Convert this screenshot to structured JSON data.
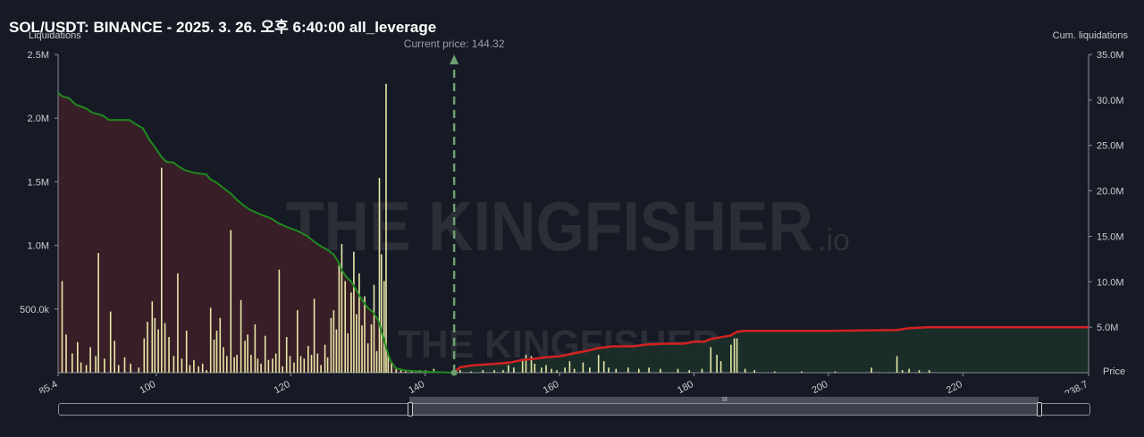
{
  "header": {
    "title": "SOL/USDT: BINANCE - 2025. 3. 26. 오후 6:40:00 all_leverage"
  },
  "axes": {
    "left_label": "Liquidations",
    "right_label": "Cum. liquidations",
    "price_label": "Price",
    "current_price_label": "Current price: 144.32"
  },
  "watermark": {
    "text": "THE KINGFISHER",
    "suffix": ".io"
  },
  "colors": {
    "background": "#161a25",
    "long_fill": "#3a1f27",
    "short_fill": "#1b2e28",
    "long_cum_line": "#1f8a1f",
    "short_cum_line": "#d42222",
    "bars": "#e8e8a8",
    "current_price_line": "#6f9f6f"
  },
  "scrollbar": {
    "grip": "III"
  },
  "chart_data": {
    "type": "bar",
    "xlabel": "Price",
    "ylabel": "Liquidations",
    "y2label": "Cum. liquidations",
    "xlim": [
      85.4,
      238.7
    ],
    "ylim": [
      0,
      2500000
    ],
    "y2lim": [
      0,
      35000000
    ],
    "x_ticks": [
      "85.4",
      "100",
      "120",
      "140",
      "160",
      "180",
      "200",
      "220",
      "238.7"
    ],
    "y_ticks": [
      "500.0k",
      "1.0M",
      "1.5M",
      "2.0M",
      "2.5M"
    ],
    "y2_ticks": [
      "5.0M",
      "10.0M",
      "15.0M",
      "20.0M",
      "25.0M",
      "30.0M",
      "35.0M"
    ],
    "current_price": 144.32,
    "bars": [
      {
        "x": 86.0,
        "y": 720000
      },
      {
        "x": 86.6,
        "y": 300000
      },
      {
        "x": 87.5,
        "y": 150000
      },
      {
        "x": 88.3,
        "y": 240000
      },
      {
        "x": 88.8,
        "y": 80000
      },
      {
        "x": 89.6,
        "y": 60000
      },
      {
        "x": 90.2,
        "y": 200000
      },
      {
        "x": 91.0,
        "y": 130000
      },
      {
        "x": 91.4,
        "y": 940000
      },
      {
        "x": 92.3,
        "y": 110000
      },
      {
        "x": 93.2,
        "y": 480000
      },
      {
        "x": 93.8,
        "y": 250000
      },
      {
        "x": 94.4,
        "y": 60000
      },
      {
        "x": 95.3,
        "y": 120000
      },
      {
        "x": 96.2,
        "y": 70000
      },
      {
        "x": 97.4,
        "y": 40000
      },
      {
        "x": 98.2,
        "y": 270000
      },
      {
        "x": 98.7,
        "y": 400000
      },
      {
        "x": 99.4,
        "y": 560000
      },
      {
        "x": 99.8,
        "y": 430000
      },
      {
        "x": 100.3,
        "y": 340000
      },
      {
        "x": 100.8,
        "y": 1610000
      },
      {
        "x": 101.3,
        "y": 390000
      },
      {
        "x": 101.9,
        "y": 280000
      },
      {
        "x": 102.6,
        "y": 130000
      },
      {
        "x": 103.2,
        "y": 780000
      },
      {
        "x": 103.8,
        "y": 110000
      },
      {
        "x": 104.5,
        "y": 330000
      },
      {
        "x": 105.0,
        "y": 60000
      },
      {
        "x": 105.6,
        "y": 100000
      },
      {
        "x": 106.3,
        "y": 50000
      },
      {
        "x": 106.9,
        "y": 70000
      },
      {
        "x": 107.5,
        "y": 20000
      },
      {
        "x": 108.1,
        "y": 510000
      },
      {
        "x": 108.6,
        "y": 260000
      },
      {
        "x": 109.0,
        "y": 330000
      },
      {
        "x": 109.5,
        "y": 430000
      },
      {
        "x": 110.0,
        "y": 200000
      },
      {
        "x": 110.5,
        "y": 130000
      },
      {
        "x": 111.1,
        "y": 1120000
      },
      {
        "x": 111.6,
        "y": 120000
      },
      {
        "x": 112.0,
        "y": 140000
      },
      {
        "x": 112.6,
        "y": 570000
      },
      {
        "x": 113.2,
        "y": 250000
      },
      {
        "x": 113.6,
        "y": 300000
      },
      {
        "x": 114.1,
        "y": 140000
      },
      {
        "x": 114.7,
        "y": 380000
      },
      {
        "x": 115.1,
        "y": 110000
      },
      {
        "x": 115.6,
        "y": 70000
      },
      {
        "x": 116.2,
        "y": 290000
      },
      {
        "x": 116.7,
        "y": 100000
      },
      {
        "x": 117.3,
        "y": 110000
      },
      {
        "x": 117.8,
        "y": 150000
      },
      {
        "x": 118.3,
        "y": 810000
      },
      {
        "x": 118.8,
        "y": 50000
      },
      {
        "x": 119.4,
        "y": 280000
      },
      {
        "x": 119.9,
        "y": 130000
      },
      {
        "x": 120.5,
        "y": 80000
      },
      {
        "x": 121.0,
        "y": 490000
      },
      {
        "x": 121.5,
        "y": 130000
      },
      {
        "x": 122.0,
        "y": 110000
      },
      {
        "x": 122.6,
        "y": 210000
      },
      {
        "x": 123.1,
        "y": 140000
      },
      {
        "x": 123.5,
        "y": 580000
      },
      {
        "x": 124.0,
        "y": 150000
      },
      {
        "x": 124.5,
        "y": 60000
      },
      {
        "x": 125.1,
        "y": 220000
      },
      {
        "x": 125.5,
        "y": 120000
      },
      {
        "x": 126.0,
        "y": 430000
      },
      {
        "x": 126.4,
        "y": 490000
      },
      {
        "x": 126.8,
        "y": 340000
      },
      {
        "x": 127.2,
        "y": 860000
      },
      {
        "x": 127.6,
        "y": 1010000
      },
      {
        "x": 128.1,
        "y": 720000
      },
      {
        "x": 128.5,
        "y": 310000
      },
      {
        "x": 129.0,
        "y": 630000
      },
      {
        "x": 129.4,
        "y": 950000
      },
      {
        "x": 129.8,
        "y": 460000
      },
      {
        "x": 130.2,
        "y": 780000
      },
      {
        "x": 130.6,
        "y": 370000
      },
      {
        "x": 131.0,
        "y": 600000
      },
      {
        "x": 131.5,
        "y": 230000
      },
      {
        "x": 132.0,
        "y": 380000
      },
      {
        "x": 132.4,
        "y": 690000
      },
      {
        "x": 132.8,
        "y": 170000
      },
      {
        "x": 133.2,
        "y": 1530000
      },
      {
        "x": 133.5,
        "y": 930000
      },
      {
        "x": 133.9,
        "y": 720000
      },
      {
        "x": 134.2,
        "y": 2270000
      },
      {
        "x": 134.5,
        "y": 140000
      },
      {
        "x": 135.0,
        "y": 80000
      },
      {
        "x": 135.7,
        "y": 30000
      },
      {
        "x": 136.4,
        "y": 20000
      },
      {
        "x": 137.1,
        "y": 20000
      },
      {
        "x": 138.0,
        "y": 10000
      },
      {
        "x": 139.2,
        "y": 20000
      },
      {
        "x": 140.1,
        "y": 20000
      },
      {
        "x": 141.3,
        "y": 30000
      },
      {
        "x": 142.6,
        "y": 10000
      },
      {
        "x": 145.2,
        "y": 20000
      },
      {
        "x": 146.8,
        "y": 10000
      },
      {
        "x": 148.6,
        "y": 20000
      },
      {
        "x": 150.3,
        "y": 20000
      },
      {
        "x": 151.6,
        "y": 20000
      },
      {
        "x": 152.4,
        "y": 60000
      },
      {
        "x": 153.2,
        "y": 40000
      },
      {
        "x": 154.5,
        "y": 110000
      },
      {
        "x": 155.0,
        "y": 140000
      },
      {
        "x": 155.8,
        "y": 130000
      },
      {
        "x": 156.3,
        "y": 70000
      },
      {
        "x": 157.3,
        "y": 40000
      },
      {
        "x": 158.0,
        "y": 60000
      },
      {
        "x": 158.8,
        "y": 30000
      },
      {
        "x": 159.6,
        "y": 20000
      },
      {
        "x": 160.8,
        "y": 40000
      },
      {
        "x": 161.5,
        "y": 90000
      },
      {
        "x": 162.2,
        "y": 30000
      },
      {
        "x": 163.5,
        "y": 80000
      },
      {
        "x": 164.5,
        "y": 40000
      },
      {
        "x": 165.8,
        "y": 140000
      },
      {
        "x": 166.6,
        "y": 90000
      },
      {
        "x": 167.3,
        "y": 40000
      },
      {
        "x": 168.4,
        "y": 30000
      },
      {
        "x": 170.2,
        "y": 40000
      },
      {
        "x": 171.8,
        "y": 30000
      },
      {
        "x": 173.3,
        "y": 40000
      },
      {
        "x": 175.0,
        "y": 30000
      },
      {
        "x": 177.6,
        "y": 30000
      },
      {
        "x": 179.3,
        "y": 20000
      },
      {
        "x": 181.2,
        "y": 30000
      },
      {
        "x": 182.5,
        "y": 200000
      },
      {
        "x": 183.4,
        "y": 140000
      },
      {
        "x": 184.0,
        "y": 90000
      },
      {
        "x": 185.5,
        "y": 220000
      },
      {
        "x": 186.0,
        "y": 270000
      },
      {
        "x": 186.4,
        "y": 270000
      },
      {
        "x": 187.6,
        "y": 30000
      },
      {
        "x": 189.0,
        "y": 20000
      },
      {
        "x": 192.0,
        "y": 10000
      },
      {
        "x": 196.0,
        "y": 10000
      },
      {
        "x": 201.0,
        "y": 10000
      },
      {
        "x": 206.4,
        "y": 40000
      },
      {
        "x": 210.2,
        "y": 130000
      },
      {
        "x": 211.0,
        "y": 20000
      },
      {
        "x": 212.0,
        "y": 30000
      },
      {
        "x": 213.5,
        "y": 20000
      },
      {
        "x": 215.0,
        "y": 20000
      }
    ],
    "long_cumulative": [
      {
        "x": 85.4,
        "y": 30800000
      },
      {
        "x": 86.0,
        "y": 30400000
      },
      {
        "x": 87.0,
        "y": 30200000
      },
      {
        "x": 88.0,
        "y": 29500000
      },
      {
        "x": 89.5,
        "y": 29100000
      },
      {
        "x": 90.5,
        "y": 28600000
      },
      {
        "x": 92.0,
        "y": 28300000
      },
      {
        "x": 93.0,
        "y": 27800000
      },
      {
        "x": 96.0,
        "y": 27800000
      },
      {
        "x": 97.0,
        "y": 27300000
      },
      {
        "x": 98.0,
        "y": 26900000
      },
      {
        "x": 99.0,
        "y": 25600000
      },
      {
        "x": 100.0,
        "y": 24600000
      },
      {
        "x": 100.8,
        "y": 23700000
      },
      {
        "x": 101.5,
        "y": 23200000
      },
      {
        "x": 102.6,
        "y": 23100000
      },
      {
        "x": 103.3,
        "y": 22700000
      },
      {
        "x": 104.2,
        "y": 22300000
      },
      {
        "x": 105.5,
        "y": 22000000
      },
      {
        "x": 107.5,
        "y": 21800000
      },
      {
        "x": 108.0,
        "y": 21300000
      },
      {
        "x": 109.0,
        "y": 20900000
      },
      {
        "x": 110.0,
        "y": 20300000
      },
      {
        "x": 111.1,
        "y": 19700000
      },
      {
        "x": 112.0,
        "y": 19000000
      },
      {
        "x": 113.0,
        "y": 18400000
      },
      {
        "x": 114.0,
        "y": 17900000
      },
      {
        "x": 115.5,
        "y": 17400000
      },
      {
        "x": 117.0,
        "y": 17000000
      },
      {
        "x": 118.3,
        "y": 16400000
      },
      {
        "x": 119.5,
        "y": 16000000
      },
      {
        "x": 121.0,
        "y": 15600000
      },
      {
        "x": 122.5,
        "y": 15000000
      },
      {
        "x": 123.5,
        "y": 14400000
      },
      {
        "x": 124.5,
        "y": 13900000
      },
      {
        "x": 125.5,
        "y": 13500000
      },
      {
        "x": 126.4,
        "y": 13000000
      },
      {
        "x": 127.0,
        "y": 12300000
      },
      {
        "x": 127.6,
        "y": 11300000
      },
      {
        "x": 128.2,
        "y": 10600000
      },
      {
        "x": 129.0,
        "y": 10000000
      },
      {
        "x": 129.6,
        "y": 9300000
      },
      {
        "x": 130.2,
        "y": 8500000
      },
      {
        "x": 130.8,
        "y": 7800000
      },
      {
        "x": 131.5,
        "y": 7100000
      },
      {
        "x": 132.2,
        "y": 6700000
      },
      {
        "x": 133.0,
        "y": 5800000
      },
      {
        "x": 133.5,
        "y": 4600000
      },
      {
        "x": 134.2,
        "y": 2800000
      },
      {
        "x": 134.8,
        "y": 1400000
      },
      {
        "x": 135.6,
        "y": 500000
      },
      {
        "x": 137.0,
        "y": 250000
      },
      {
        "x": 139.0,
        "y": 150000
      },
      {
        "x": 141.0,
        "y": 80000
      },
      {
        "x": 144.32,
        "y": 0
      }
    ],
    "short_cumulative": [
      {
        "x": 144.32,
        "y": 0
      },
      {
        "x": 145.2,
        "y": 600000
      },
      {
        "x": 147.0,
        "y": 800000
      },
      {
        "x": 151.0,
        "y": 1000000
      },
      {
        "x": 152.5,
        "y": 1100000
      },
      {
        "x": 154.5,
        "y": 1400000
      },
      {
        "x": 156.0,
        "y": 1500000
      },
      {
        "x": 158.0,
        "y": 1700000
      },
      {
        "x": 160.0,
        "y": 1800000
      },
      {
        "x": 162.0,
        "y": 2100000
      },
      {
        "x": 164.0,
        "y": 2400000
      },
      {
        "x": 165.8,
        "y": 2700000
      },
      {
        "x": 168.0,
        "y": 2900000
      },
      {
        "x": 171.0,
        "y": 2900000
      },
      {
        "x": 173.0,
        "y": 3100000
      },
      {
        "x": 176.0,
        "y": 3200000
      },
      {
        "x": 178.5,
        "y": 3200000
      },
      {
        "x": 180.0,
        "y": 3400000
      },
      {
        "x": 181.5,
        "y": 3400000
      },
      {
        "x": 182.5,
        "y": 3700000
      },
      {
        "x": 184.0,
        "y": 3900000
      },
      {
        "x": 185.5,
        "y": 4100000
      },
      {
        "x": 186.4,
        "y": 4500000
      },
      {
        "x": 187.6,
        "y": 4600000
      },
      {
        "x": 190.0,
        "y": 4600000
      },
      {
        "x": 200.0,
        "y": 4600000
      },
      {
        "x": 210.2,
        "y": 4700000
      },
      {
        "x": 212.0,
        "y": 4900000
      },
      {
        "x": 215.0,
        "y": 5000000
      },
      {
        "x": 238.7,
        "y": 5000000
      }
    ]
  }
}
